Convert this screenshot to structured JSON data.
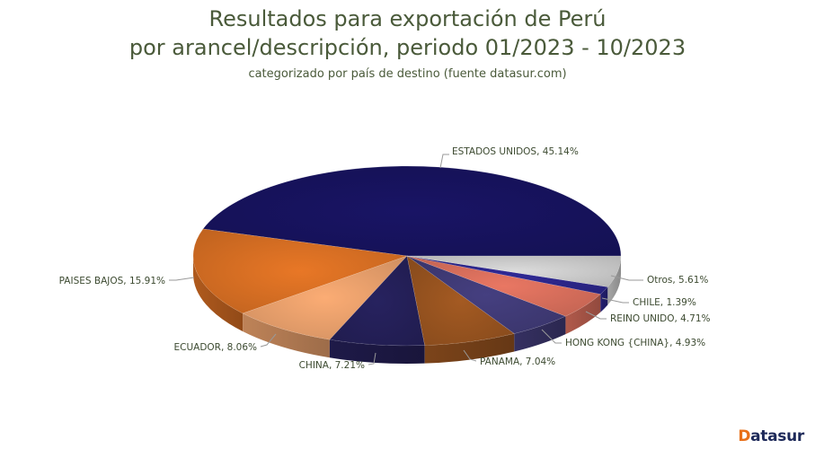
{
  "chart_data": {
    "type": "pie",
    "style": "3d",
    "title": "Resultados para exportación de Perú",
    "title_line2": "por arancel/descripción, periodo 01/2023 - 10/2023",
    "subtitle": "categorizado por país de destino (fuente datasur.com)",
    "legend": "none (data labels with connector lines)",
    "slices": [
      {
        "label": "ESTADOS UNIDOS",
        "value": 45.14,
        "text": "ESTADOS UNIDOS, 45.14%",
        "color": "#16125a"
      },
      {
        "label": "PAISES BAJOS",
        "value": 15.91,
        "text": "PAISES BAJOS, 15.91%",
        "color": "#cf6a22"
      },
      {
        "label": "ECUADOR",
        "value": 8.06,
        "text": "ECUADOR, 8.06%",
        "color": "#e09a68"
      },
      {
        "label": "CHINA",
        "value": 7.21,
        "text": "CHINA, 7.21%",
        "color": "#231e55"
      },
      {
        "label": "PANAMA",
        "value": 7.04,
        "text": "PANAMA, 7.04%",
        "color": "#92501e"
      },
      {
        "label": "HONG KONG {CHINA}",
        "value": 4.93,
        "text": "HONG KONG {CHINA}, 4.93%",
        "color": "#3e3872"
      },
      {
        "label": "REINO UNIDO",
        "value": 4.71,
        "text": "REINO UNIDO, 4.71%",
        "color": "#d06a58"
      },
      {
        "label": "CHILE",
        "value": 1.39,
        "text": "CHILE, 1.39%",
        "color": "#2a2585"
      },
      {
        "label": "Otros",
        "value": 5.61,
        "text": "Otros, 5.61%",
        "color": "#c4c4c4"
      }
    ]
  },
  "header": {
    "title_line1": "Resultados para exportación de Perú",
    "title_line2": "por arancel/descripción, periodo 01/2023 - 10/2023",
    "subtitle": "categorizado por país de destino (fuente datasur.com)"
  },
  "branding": {
    "logo_first": "D",
    "logo_rest": "atasur",
    "accent": "#e8701a",
    "brand": "#1e2a5a"
  }
}
